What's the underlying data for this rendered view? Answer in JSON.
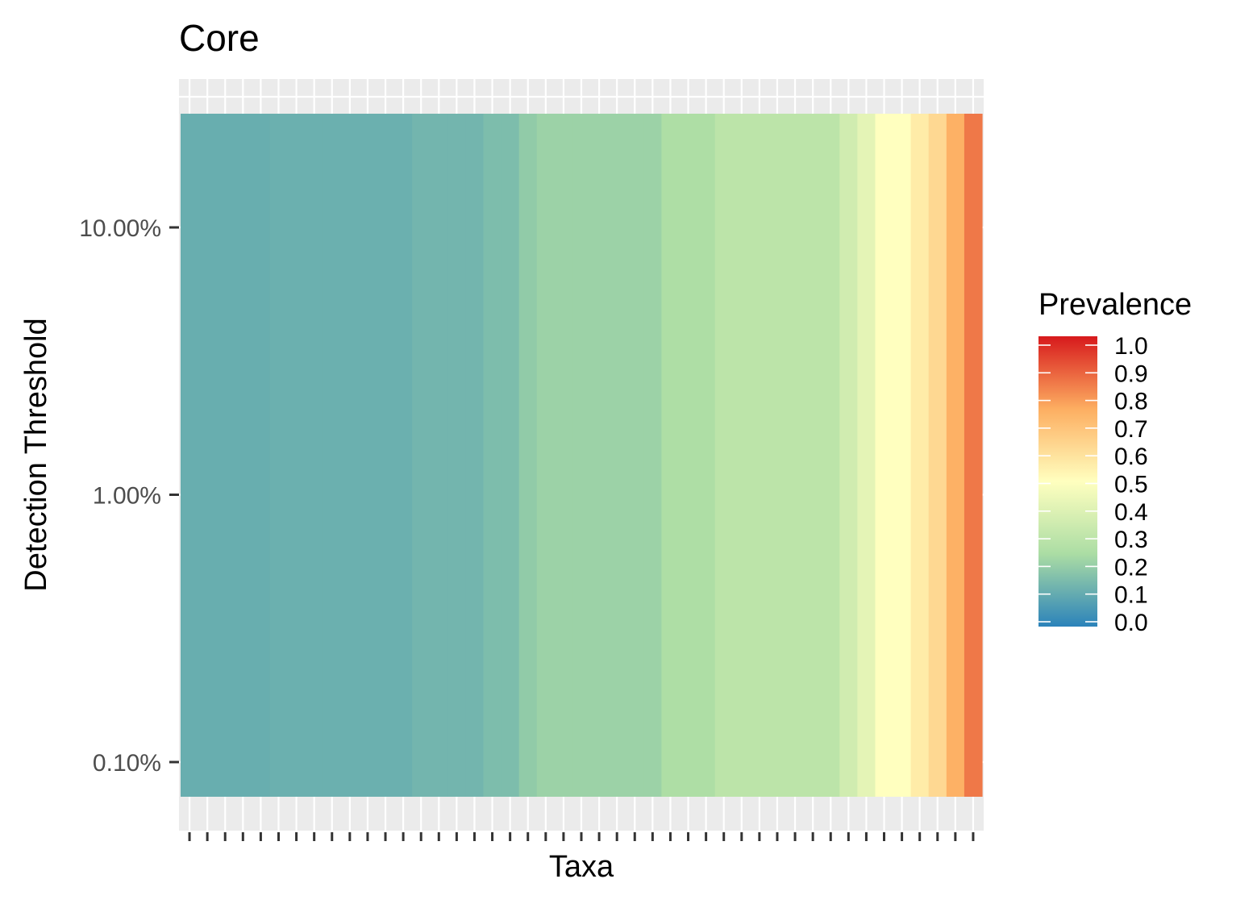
{
  "chart_data": {
    "type": "heatmap",
    "title": "Core",
    "xlabel": "Taxa",
    "ylabel": "Detection Threshold",
    "x_tick_labels_shown": false,
    "y_scale": "log",
    "y_ticks": [
      {
        "value": 10,
        "label": "10.00%"
      },
      {
        "value": 1,
        "label": "1.00%"
      },
      {
        "value": 0.1,
        "label": "0.10%"
      }
    ],
    "detection_thresholds_percent": [
      0.1,
      1,
      10
    ],
    "n_taxa": 45,
    "prevalence_by_taxon": [
      0.12,
      0.12,
      0.12,
      0.12,
      0.12,
      0.125,
      0.125,
      0.125,
      0.125,
      0.125,
      0.125,
      0.125,
      0.125,
      0.14,
      0.14,
      0.14,
      0.14,
      0.16,
      0.16,
      0.2,
      0.22,
      0.22,
      0.22,
      0.22,
      0.22,
      0.22,
      0.22,
      0.26,
      0.26,
      0.26,
      0.3,
      0.3,
      0.3,
      0.3,
      0.3,
      0.3,
      0.3,
      0.36,
      0.42,
      0.5,
      0.5,
      0.56,
      0.62,
      0.74,
      0.84
    ],
    "legend": {
      "title": "Prevalence",
      "placement": "right",
      "ticks": [
        "0.0",
        "0.1",
        "0.2",
        "0.3",
        "0.4",
        "0.5",
        "0.6",
        "0.7",
        "0.8",
        "0.9",
        "1.0"
      ],
      "range": [
        0,
        1
      ],
      "palette": [
        "#2b83ba",
        "#abdda4",
        "#ffffbf",
        "#fdae61",
        "#d7191c"
      ]
    },
    "panel_background": "#ebebeb",
    "grid": true
  }
}
